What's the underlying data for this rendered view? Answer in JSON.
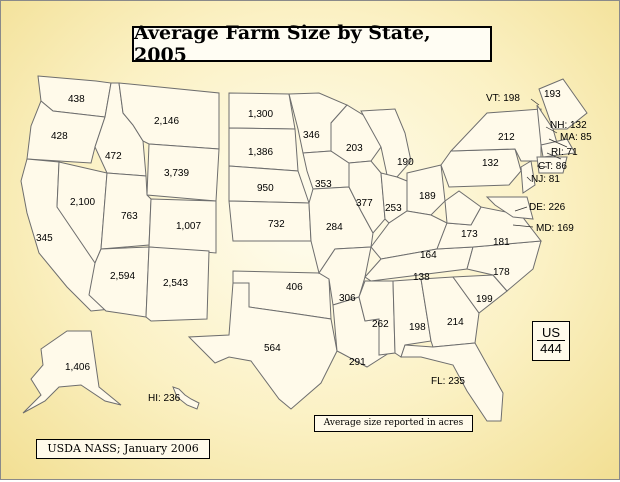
{
  "title": "Average Farm Size by State, 2005",
  "us": {
    "label": "US",
    "value": "444"
  },
  "legend_text": "Average size reported in acres",
  "source_text": "USDA NASS; January 2006",
  "colors": {
    "background": "#fbf1c4",
    "state_fill": "#fffaea",
    "state_stroke": "#6e6e6e"
  },
  "states": {
    "WA": "438",
    "OR": "428",
    "ID": "472",
    "MT": "2,146",
    "WY": "3,739",
    "CA": "345",
    "NV": "2,100",
    "UT": "763",
    "CO": "1,007",
    "AZ": "2,594",
    "NM": "2,543",
    "ND": "1,300",
    "SD": "1,386",
    "NE": "950",
    "KS": "732",
    "OK": "406",
    "TX": "564",
    "MN": "346",
    "IA": "353",
    "MO": "284",
    "AR": "306",
    "LA": "291",
    "WI": "203",
    "IL": "377",
    "MI": "190",
    "IN": "253",
    "OH": "189",
    "KY": "164",
    "TN": "138",
    "MS": "262",
    "AL": "198",
    "GA": "214",
    "SC": "199",
    "NC": "178",
    "VA": "181",
    "WV": "173",
    "PA": "132",
    "NY": "212",
    "ME": "193",
    "AK": "1,406",
    "VT": "VT: 198",
    "NH": "NH: 132",
    "MA": "MA: 85",
    "RI": "RI: 71",
    "CT": "CT: 86",
    "NJ": "NJ: 81",
    "DE": "DE: 226",
    "MD": "MD: 169",
    "FL": "FL: 235",
    "HI": "HI: 236"
  }
}
